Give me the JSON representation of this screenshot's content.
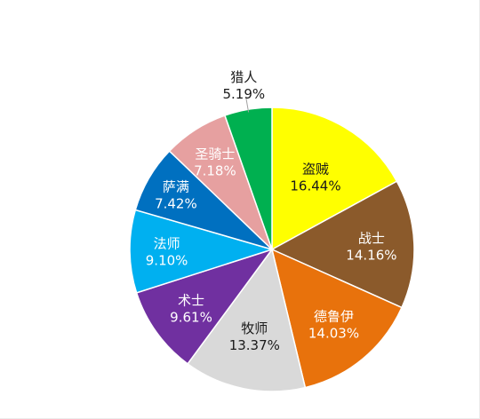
{
  "chart_data": {
    "type": "pie",
    "title": "",
    "start_angle_deg": 0,
    "direction": "clockwise",
    "slices": [
      {
        "name": "盗贼",
        "value": 16.44,
        "label": "16.44%",
        "color": "#ffff00",
        "text_color": "#1a1a1a"
      },
      {
        "name": "战士",
        "value": 14.16,
        "label": "14.16%",
        "color": "#8b5a2b",
        "text_color": "#ffffff"
      },
      {
        "name": "德鲁伊",
        "value": 14.03,
        "label": "14.03%",
        "color": "#e8720c",
        "text_color": "#ffffff"
      },
      {
        "name": "牧师",
        "value": 13.37,
        "label": "13.37%",
        "color": "#d9d9d9",
        "text_color": "#1a1a1a"
      },
      {
        "name": "术士",
        "value": 9.61,
        "label": "9.61%",
        "color": "#7030a0",
        "text_color": "#ffffff"
      },
      {
        "name": "法师",
        "value": 9.1,
        "label": "9.10%",
        "color": "#00b0f0",
        "text_color": "#ffffff"
      },
      {
        "name": "萨满",
        "value": 7.42,
        "label": "7.42%",
        "color": "#0070c0",
        "text_color": "#ffffff"
      },
      {
        "name": "圣骑士",
        "value": 7.18,
        "label": "7.18%",
        "color": "#e6a0a0",
        "text_color": "#ffffff"
      },
      {
        "name": "猎人",
        "value": 5.19,
        "label": "5.19%",
        "color": "#00b050",
        "text_color": "#1a1a1a"
      }
    ]
  }
}
